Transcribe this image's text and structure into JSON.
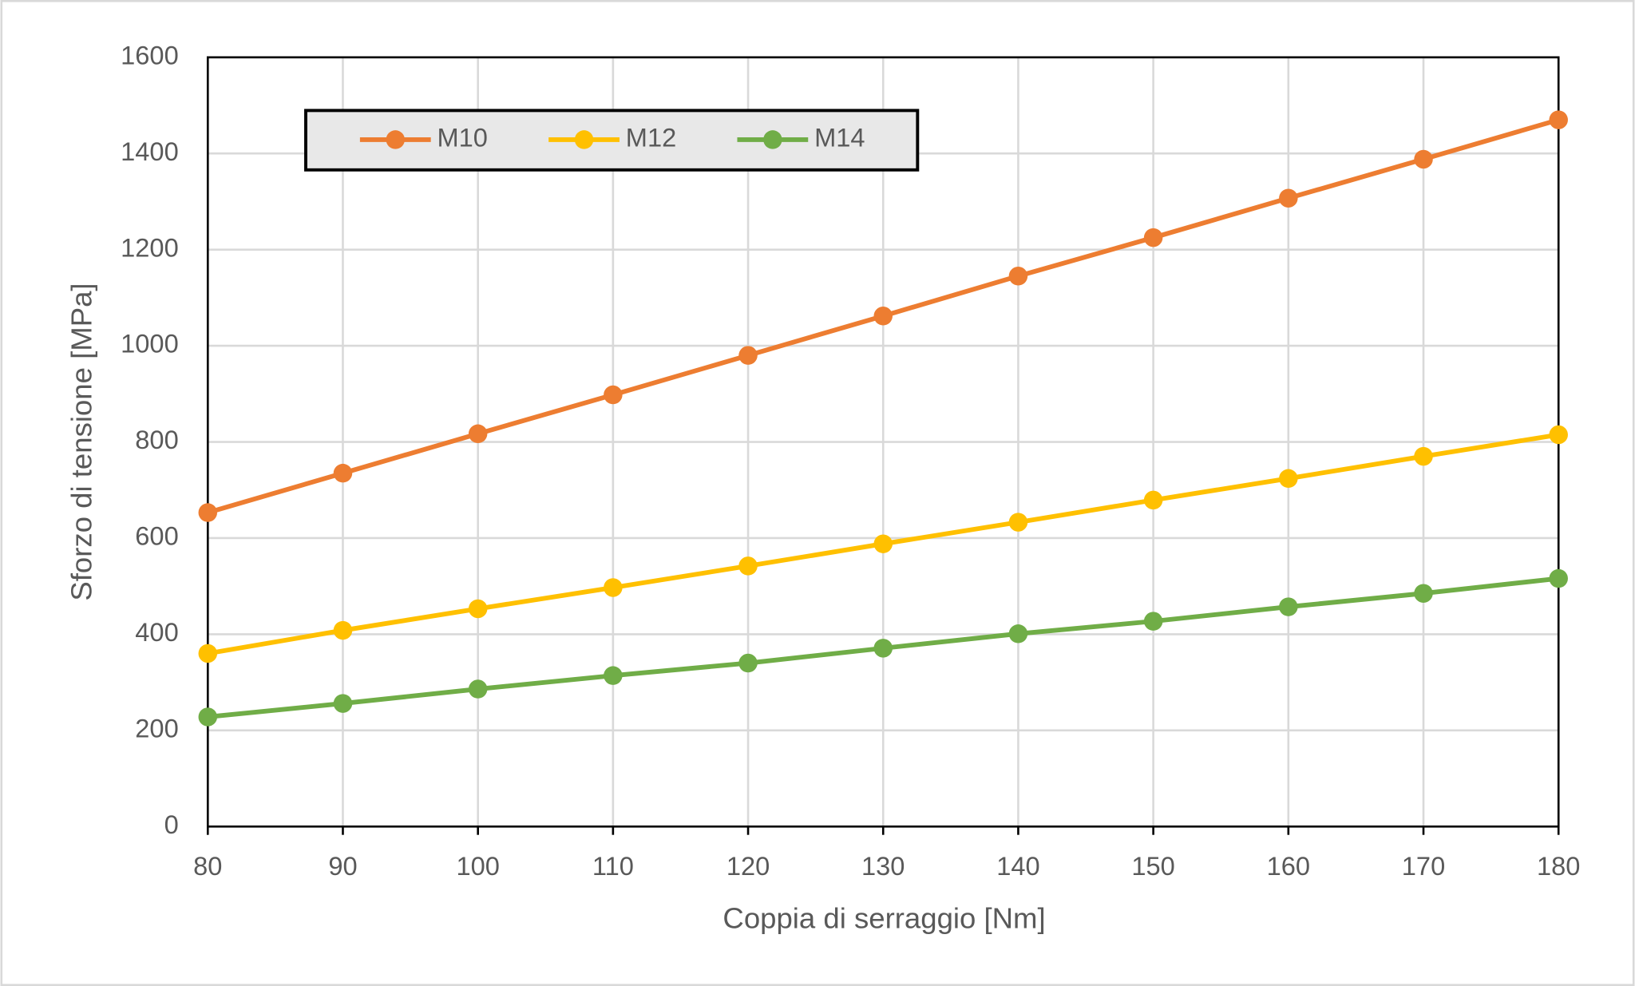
{
  "chart_data": {
    "type": "line",
    "x_label": "Coppia di serraggio [Nm]",
    "y_label": "Sforzo di tensione [MPa]",
    "x": [
      80,
      90,
      100,
      110,
      120,
      130,
      140,
      150,
      160,
      170,
      180
    ],
    "series": [
      {
        "name": "M10",
        "color": "#ed7d31",
        "values": [
          653,
          735,
          817,
          898,
          980,
          1062,
          1145,
          1225,
          1307,
          1388,
          1470
        ]
      },
      {
        "name": "M12",
        "color": "#ffc000",
        "values": [
          360,
          408,
          453,
          497,
          542,
          588,
          633,
          679,
          724,
          770,
          815
        ]
      },
      {
        "name": "M14",
        "color": "#70ad47",
        "values": [
          228,
          256,
          286,
          314,
          340,
          371,
          401,
          427,
          457,
          485,
          516
        ]
      }
    ],
    "xlim": [
      80,
      180
    ],
    "xticks": [
      80,
      90,
      100,
      110,
      120,
      130,
      140,
      150,
      160,
      170,
      180
    ],
    "ylim": [
      0,
      1600
    ],
    "yticks": [
      0,
      200,
      400,
      600,
      800,
      1000,
      1200,
      1400,
      1600
    ],
    "grid": true,
    "legend": "top-left"
  }
}
